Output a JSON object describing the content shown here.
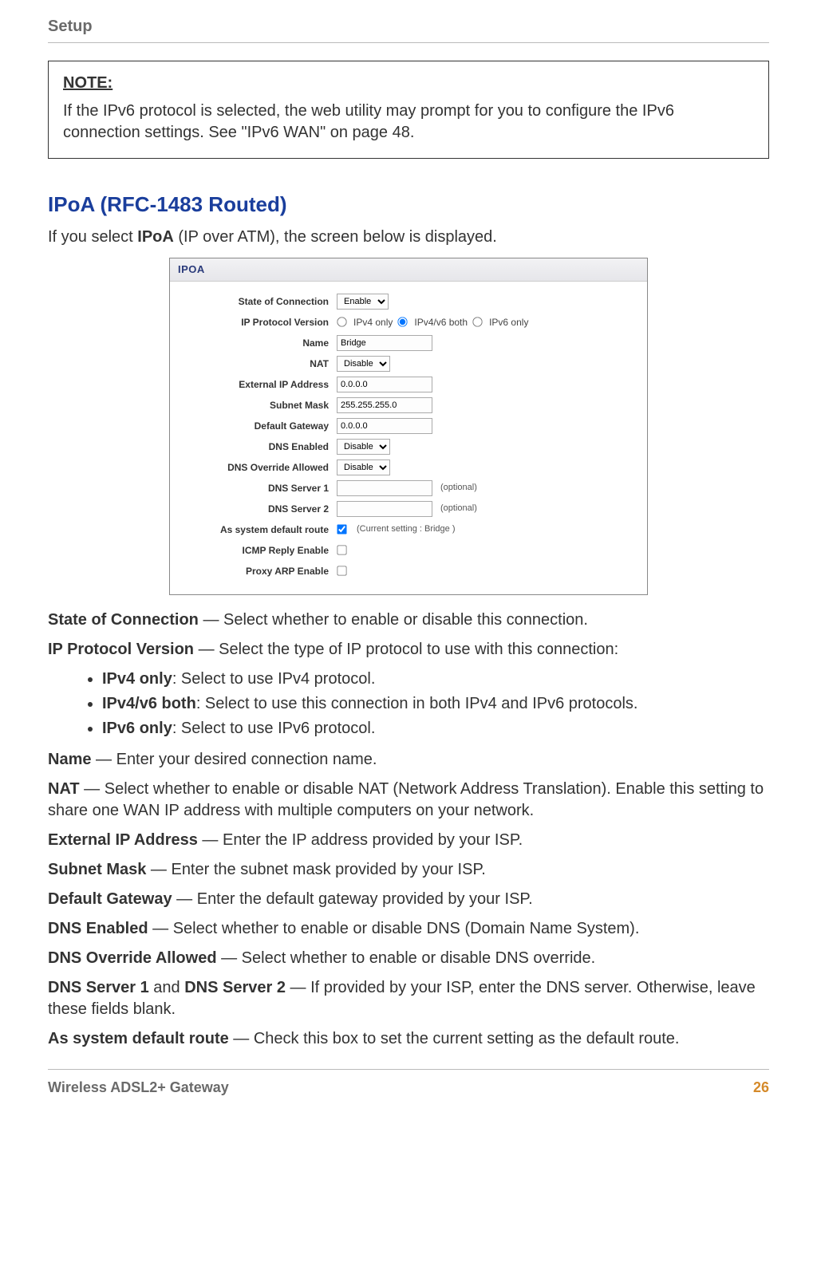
{
  "header": {
    "title": "Setup"
  },
  "note": {
    "label": "NOTE:",
    "text": "If the IPv6 protocol is selected, the web utility may prompt for you to configure the IPv6 connection settings. See \"IPv6 WAN\" on page 48."
  },
  "section": {
    "heading": "IPoA (RFC-1483 Routed)",
    "intro_pre": "If you select ",
    "intro_bold": "IPoA",
    "intro_post": " (IP over ATM), the screen below is displayed."
  },
  "screenshot": {
    "title": "IPOA",
    "rows": {
      "state_label": "State of Connection",
      "state_value": "Enable",
      "ipproto_label": "IP Protocol Version",
      "ipproto_o1": "IPv4 only",
      "ipproto_o2": "IPv4/v6 both",
      "ipproto_o3": "IPv6 only",
      "name_label": "Name",
      "name_value": "Bridge",
      "nat_label": "NAT",
      "nat_value": "Disable",
      "extip_label": "External IP Address",
      "extip_value": "0.0.0.0",
      "mask_label": "Subnet Mask",
      "mask_value": "255.255.255.0",
      "gw_label": "Default Gateway",
      "gw_value": "0.0.0.0",
      "dnse_label": "DNS Enabled",
      "dnse_value": "Disable",
      "dnso_label": "DNS Override Allowed",
      "dnso_value": "Disable",
      "dns1_label": "DNS Server 1",
      "dns2_label": "DNS Server 2",
      "optional": "(optional)",
      "route_label": "As system default route",
      "route_text": "(Current setting : Bridge )",
      "icmp_label": "ICMP Reply Enable",
      "arp_label": "Proxy ARP Enable"
    }
  },
  "descriptions": {
    "d1_b": "State of Connection",
    "d1_t": " — Select whether to enable or disable this connection.",
    "d2_b": "IP Protocol Version",
    "d2_t": " — Select the type of IP protocol to use with this connection:",
    "li1_b": "IPv4 only",
    "li1_t": ": Select to use IPv4 protocol.",
    "li2_b": "IPv4/v6 both",
    "li2_t": ": Select to use this connection in both IPv4 and IPv6 protocols.",
    "li3_b": "IPv6 only",
    "li3_t": ": Select to use IPv6 protocol.",
    "d3_b": "Name",
    "d3_t": " — Enter your desired connection name.",
    "d4_b": "NAT",
    "d4_t": " — Select whether to enable or disable NAT (Network Address Translation). Enable this setting to share one WAN IP address with multiple computers on your network.",
    "d5_b": "External IP Address",
    "d5_t": " — Enter the IP address provided by your ISP.",
    "d6_b": "Subnet Mask",
    "d6_t": " — Enter the subnet mask provided by your ISP.",
    "d7_b": "Default Gateway",
    "d7_t": " — Enter the default gateway provided by your ISP.",
    "d8_b": "DNS Enabled",
    "d8_t": " — Select whether to enable or disable DNS (Domain Name System).",
    "d9_b": "DNS Override Allowed",
    "d9_t": " — Select whether to enable or disable DNS override.",
    "d10_b1": "DNS Server 1",
    "d10_mid": " and ",
    "d10_b2": "DNS Server 2",
    "d10_t": " — If provided by your ISP, enter the DNS server. Otherwise, leave these fields blank.",
    "d11_b": "As system default route",
    "d11_t": " — Check this box to set the current setting as the default route."
  },
  "footer": {
    "left": "Wireless ADSL2+ Gateway",
    "page": "26"
  }
}
